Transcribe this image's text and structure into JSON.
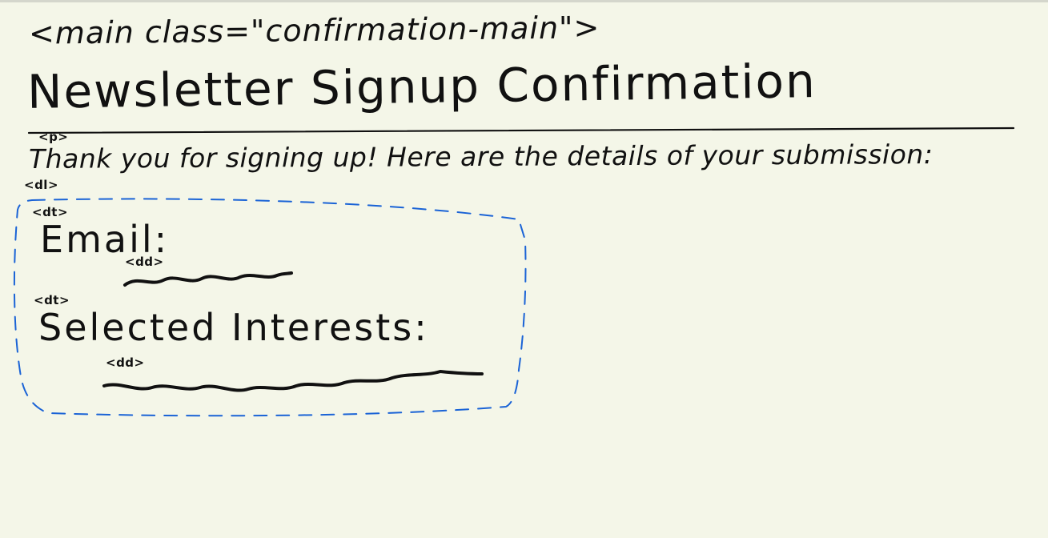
{
  "sketch": {
    "main_tag": "<main class=\"confirmation-main\">",
    "heading": "Newsletter Signup Confirmation",
    "p_tag": "<p>",
    "paragraph": "Thank you for signing up! Here are the details of your submission:",
    "dl_tag": "<dl>",
    "dt_email_tag": "<dt>",
    "email_term": "Email:",
    "dd_email_tag": "<dd>",
    "dt_interests_tag": "<dt>",
    "interests_term": "Selected Interests:",
    "dd_interests_tag": "<dd>"
  },
  "colors": {
    "background": "#f4f6e8",
    "ink": "#111111",
    "box_outline": "#1a63d6"
  }
}
